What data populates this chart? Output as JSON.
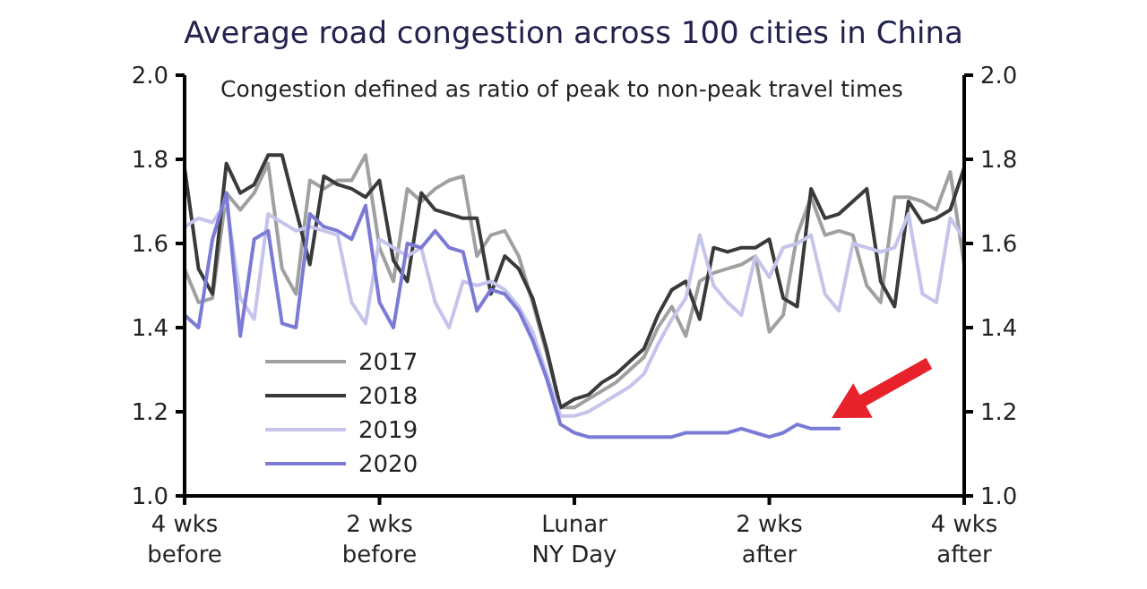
{
  "chart_data": {
    "type": "line",
    "title": "Average road congestion across 100 cities in China",
    "annotations": [
      "Congestion defined as ratio of peak to non-peak travel times"
    ],
    "categories": [
      "4 wks\nbefore",
      null,
      null,
      null,
      null,
      null,
      null,
      null,
      null,
      null,
      null,
      null,
      null,
      null,
      "2 wks\nbefore",
      null,
      null,
      null,
      null,
      null,
      null,
      null,
      null,
      null,
      null,
      null,
      null,
      null,
      "Lunar\nNY Day",
      null,
      null,
      null,
      null,
      null,
      null,
      null,
      null,
      null,
      null,
      null,
      null,
      null,
      "2 wks\nafter",
      null,
      null,
      null,
      null,
      null,
      null,
      null,
      null,
      null,
      null,
      null,
      null,
      null,
      "4 wks\nafter"
    ],
    "ylim": [
      1.0,
      2.0
    ],
    "yticks": [
      {
        "value": 1.0,
        "label": "1.0"
      },
      1.2,
      1.4,
      1.6,
      1.8,
      {
        "value": 2.0,
        "label": "2.0"
      }
    ],
    "y2lim": [
      1.0,
      2.0
    ],
    "y2ticks": [
      {
        "value": 1.0,
        "label": "1.0"
      },
      1.2,
      1.4,
      1.6,
      1.8,
      {
        "value": 2.0,
        "label": "2.0"
      }
    ],
    "legend": "bottom left",
    "grid": false,
    "series": [
      {
        "name": "2017",
        "color": "#a0a0a0",
        "values": [
          1.54,
          1.46,
          1.47,
          1.72,
          1.68,
          1.72,
          1.79,
          1.54,
          1.48,
          1.75,
          1.73,
          1.75,
          1.75,
          1.81,
          1.59,
          1.51,
          1.73,
          1.7,
          1.73,
          1.75,
          1.76,
          1.57,
          1.62,
          1.63,
          1.57,
          1.46,
          1.34,
          1.21,
          1.21,
          1.23,
          1.25,
          1.27,
          1.3,
          1.33,
          1.4,
          1.45,
          1.38,
          1.51,
          1.53,
          1.54,
          1.55,
          1.57,
          1.39,
          1.43,
          1.62,
          1.71,
          1.62,
          1.63,
          1.62,
          1.5,
          1.46,
          1.71,
          1.71,
          1.7,
          1.68,
          1.77,
          1.55
        ]
      },
      {
        "name": "2018",
        "color": "#3a3a3a",
        "values": [
          1.78,
          1.54,
          1.48,
          1.79,
          1.72,
          1.74,
          1.81,
          1.81,
          1.68,
          1.55,
          1.76,
          1.74,
          1.73,
          1.71,
          1.75,
          1.56,
          1.51,
          1.72,
          1.68,
          1.67,
          1.66,
          1.66,
          1.48,
          1.57,
          1.54,
          1.47,
          1.35,
          1.21,
          1.23,
          1.24,
          1.27,
          1.29,
          1.32,
          1.35,
          1.43,
          1.49,
          1.51,
          1.42,
          1.59,
          1.58,
          1.59,
          1.59,
          1.61,
          1.47,
          1.45,
          1.73,
          1.66,
          1.67,
          1.7,
          1.73,
          1.51,
          1.45,
          1.7,
          1.65,
          1.66,
          1.68,
          1.78
        ]
      },
      {
        "name": "2019",
        "color": "#c4c4ec",
        "values": [
          1.64,
          1.66,
          1.65,
          1.7,
          1.47,
          1.42,
          1.67,
          1.65,
          1.63,
          1.64,
          1.63,
          1.62,
          1.46,
          1.41,
          1.61,
          1.59,
          1.57,
          1.59,
          1.46,
          1.4,
          1.51,
          1.5,
          1.51,
          1.49,
          1.45,
          1.39,
          1.29,
          1.19,
          1.19,
          1.2,
          1.22,
          1.24,
          1.26,
          1.29,
          1.36,
          1.42,
          1.47,
          1.62,
          1.5,
          1.46,
          1.43,
          1.57,
          1.52,
          1.59,
          1.6,
          1.62,
          1.48,
          1.44,
          1.6,
          1.59,
          1.58,
          1.59,
          1.67,
          1.48,
          1.46,
          1.66,
          1.61
        ]
      },
      {
        "name": "2020",
        "color": "#7b7bd6",
        "values": [
          1.43,
          1.4,
          1.61,
          1.72,
          1.38,
          1.61,
          1.63,
          1.41,
          1.4,
          1.67,
          1.64,
          1.63,
          1.61,
          1.69,
          1.46,
          1.4,
          1.6,
          1.59,
          1.63,
          1.59,
          1.58,
          1.44,
          1.49,
          1.48,
          1.44,
          1.37,
          1.28,
          1.17,
          1.15,
          1.14,
          1.14,
          1.14,
          1.14,
          1.14,
          1.14,
          1.14,
          1.15,
          1.15,
          1.15,
          1.15,
          1.16,
          1.15,
          1.14,
          1.15,
          1.17,
          1.16,
          1.16,
          1.16,
          null,
          null,
          null,
          null,
          null,
          null,
          null,
          null,
          null
        ]
      }
    ]
  }
}
